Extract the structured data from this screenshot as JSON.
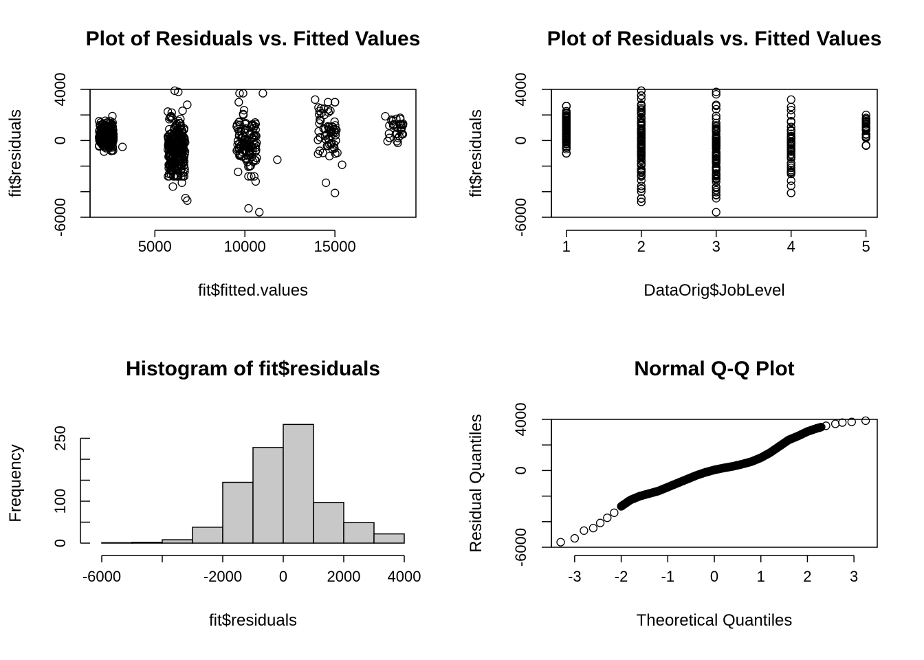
{
  "chart_data": [
    {
      "type": "scatter",
      "title": "Plot of Residuals vs. Fitted Values",
      "xlabel": "fit$fitted.values",
      "ylabel": "fit$residuals",
      "xlim": [
        1400,
        19500
      ],
      "ylim": [
        -6000,
        4000
      ],
      "x_ticks": [
        5000,
        10000,
        15000
      ],
      "y_ticks": [
        -6000,
        -4000,
        -2000,
        0,
        2000,
        4000
      ],
      "y_tick_labels_shown": [
        "-6000",
        "0",
        "4000"
      ],
      "x_tick_labels": [
        "5000",
        "10000",
        "15000"
      ],
      "y_tick_labels": [
        "-6000",
        "0",
        "4000"
      ],
      "clusters": [
        {
          "x_center": 2300,
          "x_spread": 500,
          "y_mean": 400,
          "y_sd": 700,
          "count": 220
        },
        {
          "x_center": 6200,
          "x_spread": 600,
          "y_mean": -800,
          "y_sd": 1500,
          "count": 260
        },
        {
          "x_center": 10100,
          "x_spread": 700,
          "y_mean": -300,
          "y_sd": 1500,
          "count": 110
        },
        {
          "x_center": 14600,
          "x_spread": 700,
          "y_mean": 700,
          "y_sd": 1500,
          "count": 60
        },
        {
          "x_center": 18400,
          "x_spread": 600,
          "y_mean": 900,
          "y_sd": 700,
          "count": 30
        }
      ],
      "points": [
        [
          6300,
          3800
        ],
        [
          6100,
          3900
        ],
        [
          9700,
          3700
        ],
        [
          9900,
          3700
        ],
        [
          11000,
          3700
        ],
        [
          13900,
          3200
        ],
        [
          15000,
          3000
        ],
        [
          6800,
          2800
        ],
        [
          17800,
          1900
        ],
        [
          6500,
          -3300
        ],
        [
          6000,
          -3600
        ],
        [
          6700,
          -4500
        ],
        [
          6800,
          -4700
        ],
        [
          10600,
          -3200
        ],
        [
          10200,
          -5300
        ],
        [
          10800,
          -5600
        ],
        [
          14500,
          -3300
        ],
        [
          15000,
          -4100
        ],
        [
          11800,
          -1500
        ],
        [
          15400,
          -1900
        ],
        [
          3200,
          -500
        ]
      ]
    },
    {
      "type": "scatter",
      "title": "Plot of Residuals vs. Fitted Values",
      "xlabel": "DataOrig$JobLevel",
      "ylabel": "fit$residuals",
      "xlim": [
        0.8,
        5.15
      ],
      "ylim": [
        -6000,
        4000
      ],
      "x_ticks": [
        1,
        2,
        3,
        4,
        5
      ],
      "x_tick_labels": [
        "1",
        "2",
        "3",
        "4",
        "5"
      ],
      "y_ticks": [
        -6000,
        -4000,
        -2000,
        0,
        2000,
        4000
      ],
      "y_tick_labels": [
        "-6000",
        "0",
        "4000"
      ],
      "levels": [
        {
          "x": 1,
          "min": -1000,
          "max": 2700
        },
        {
          "x": 2,
          "min": -4800,
          "max": 3900
        },
        {
          "x": 3,
          "min": -5600,
          "max": 3800
        },
        {
          "x": 4,
          "min": -4100,
          "max": 3200
        },
        {
          "x": 5,
          "min": -400,
          "max": 2000
        }
      ]
    },
    {
      "type": "bar",
      "title": "Histogram of fit$residuals",
      "xlabel": "fit$residuals",
      "ylabel": "Frequency",
      "xlim": [
        -6000,
        4000
      ],
      "ylim": [
        0,
        300
      ],
      "x_ticks": [
        -6000,
        -4000,
        -2000,
        0,
        2000,
        4000
      ],
      "x_tick_labels": [
        "-6000",
        "",
        "-2000",
        "0",
        "2000",
        "4000"
      ],
      "y_ticks": [
        0,
        50,
        100,
        150,
        200,
        250
      ],
      "y_tick_labels": [
        "0",
        "",
        "100",
        "",
        "",
        "250"
      ],
      "bins": [
        {
          "from": -6000,
          "to": -5000,
          "count": 1
        },
        {
          "from": -5000,
          "to": -4000,
          "count": 2
        },
        {
          "from": -4000,
          "to": -3000,
          "count": 8
        },
        {
          "from": -3000,
          "to": -2000,
          "count": 38
        },
        {
          "from": -2000,
          "to": -1000,
          "count": 145
        },
        {
          "from": -1000,
          "to": 0,
          "count": 228
        },
        {
          "from": 0,
          "to": 1000,
          "count": 283
        },
        {
          "from": 1000,
          "to": 2000,
          "count": 97
        },
        {
          "from": 2000,
          "to": 3000,
          "count": 49
        },
        {
          "from": 3000,
          "to": 4000,
          "count": 22
        }
      ],
      "bar_color": "#c8c8c8"
    },
    {
      "type": "scatter",
      "title": "Normal Q-Q Plot",
      "xlabel": "Theoretical Quantiles",
      "ylabel": "Residual Quantiles",
      "xlim": [
        -3.5,
        3.5
      ],
      "ylim": [
        -6000,
        4000
      ],
      "x_ticks": [
        -3,
        -2,
        -1,
        0,
        1,
        2,
        3
      ],
      "x_tick_labels": [
        "-3",
        "-2",
        "-1",
        "0",
        "1",
        "2",
        "3"
      ],
      "y_ticks": [
        -6000,
        -4000,
        -2000,
        0,
        2000,
        4000
      ],
      "y_tick_labels": [
        "-6000",
        "0",
        "4000"
      ],
      "curve": [
        [
          -3.3,
          -5600
        ],
        [
          -3.0,
          -5300
        ],
        [
          -2.8,
          -4700
        ],
        [
          -2.6,
          -4500
        ],
        [
          -2.45,
          -4100
        ],
        [
          -2.3,
          -3700
        ],
        [
          -2.15,
          -3300
        ],
        [
          -2.0,
          -2800
        ],
        [
          -1.8,
          -2300
        ],
        [
          -1.6,
          -2000
        ],
        [
          -1.4,
          -1800
        ],
        [
          -1.2,
          -1600
        ],
        [
          -1.0,
          -1300
        ],
        [
          -0.8,
          -1000
        ],
        [
          -0.6,
          -700
        ],
        [
          -0.4,
          -400
        ],
        [
          -0.2,
          -150
        ],
        [
          0,
          50
        ],
        [
          0.2,
          200
        ],
        [
          0.4,
          330
        ],
        [
          0.6,
          500
        ],
        [
          0.8,
          700
        ],
        [
          1.0,
          1000
        ],
        [
          1.2,
          1400
        ],
        [
          1.4,
          1900
        ],
        [
          1.6,
          2400
        ],
        [
          1.8,
          2700
        ],
        [
          2.0,
          3050
        ],
        [
          2.2,
          3300
        ],
        [
          2.4,
          3500
        ],
        [
          2.6,
          3650
        ],
        [
          2.75,
          3750
        ],
        [
          2.95,
          3800
        ],
        [
          3.25,
          3900
        ]
      ]
    }
  ]
}
